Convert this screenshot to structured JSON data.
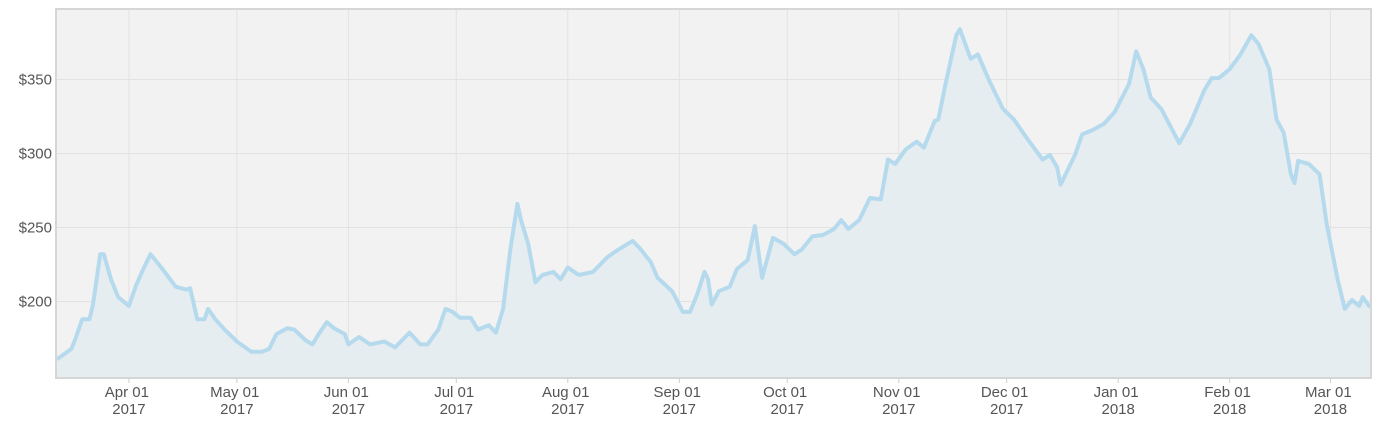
{
  "chart_data": {
    "type": "area",
    "x": [
      "2017-03-12",
      "2017-03-16",
      "2017-03-17",
      "2017-03-19",
      "2017-03-21",
      "2017-03-22",
      "2017-03-24",
      "2017-03-25",
      "2017-03-27",
      "2017-03-29",
      "2017-04-01",
      "2017-04-03",
      "2017-04-05",
      "2017-04-07",
      "2017-04-10",
      "2017-04-14",
      "2017-04-17",
      "2017-04-18",
      "2017-04-20",
      "2017-04-22",
      "2017-04-23",
      "2017-04-25",
      "2017-04-28",
      "2017-05-01",
      "2017-05-05",
      "2017-05-08",
      "2017-05-10",
      "2017-05-12",
      "2017-05-15",
      "2017-05-17",
      "2017-05-20",
      "2017-05-22",
      "2017-05-24",
      "2017-05-26",
      "2017-05-28",
      "2017-05-31",
      "2017-06-01",
      "2017-06-04",
      "2017-06-07",
      "2017-06-11",
      "2017-06-14",
      "2017-06-18",
      "2017-06-21",
      "2017-06-23",
      "2017-06-26",
      "2017-06-28",
      "2017-06-30",
      "2017-07-02",
      "2017-07-05",
      "2017-07-07",
      "2017-07-10",
      "2017-07-12",
      "2017-07-14",
      "2017-07-16",
      "2017-07-18",
      "2017-07-19",
      "2017-07-21",
      "2017-07-23",
      "2017-07-25",
      "2017-07-28",
      "2017-07-30",
      "2017-08-01",
      "2017-08-04",
      "2017-08-08",
      "2017-08-12",
      "2017-08-15",
      "2017-08-19",
      "2017-08-21",
      "2017-08-24",
      "2017-08-26",
      "2017-08-30",
      "2017-09-02",
      "2017-09-04",
      "2017-09-06",
      "2017-09-08",
      "2017-09-09",
      "2017-09-10",
      "2017-09-12",
      "2017-09-15",
      "2017-09-17",
      "2017-09-20",
      "2017-09-22",
      "2017-09-24",
      "2017-09-27",
      "2017-09-30",
      "2017-10-03",
      "2017-10-05",
      "2017-10-08",
      "2017-10-11",
      "2017-10-14",
      "2017-10-16",
      "2017-10-18",
      "2017-10-21",
      "2017-10-24",
      "2017-10-27",
      "2017-10-29",
      "2017-10-31",
      "2017-11-03",
      "2017-11-06",
      "2017-11-08",
      "2017-11-11",
      "2017-11-12",
      "2017-11-14",
      "2017-11-17",
      "2017-11-18",
      "2017-11-21",
      "2017-11-23",
      "2017-11-26",
      "2017-11-30",
      "2017-12-03",
      "2017-12-07",
      "2017-12-11",
      "2017-12-13",
      "2017-12-15",
      "2017-12-16",
      "2017-12-20",
      "2017-12-22",
      "2017-12-25",
      "2017-12-28",
      "2017-12-31",
      "2018-01-04",
      "2018-01-06",
      "2018-01-08",
      "2018-01-10",
      "2018-01-13",
      "2018-01-18",
      "2018-01-21",
      "2018-01-25",
      "2018-01-27",
      "2018-01-29",
      "2018-02-01",
      "2018-02-04",
      "2018-02-07",
      "2018-02-09",
      "2018-02-12",
      "2018-02-14",
      "2018-02-16",
      "2018-02-18",
      "2018-02-19",
      "2018-02-20",
      "2018-02-23",
      "2018-02-26",
      "2018-02-28",
      "2018-03-03",
      "2018-03-05",
      "2018-03-07",
      "2018-03-09",
      "2018-03-10",
      "2018-03-12"
    ],
    "values": [
      161,
      168,
      174,
      188,
      188,
      198,
      232,
      232,
      215,
      203,
      197,
      211,
      222,
      232,
      223,
      210,
      208,
      209,
      188,
      188,
      195,
      188,
      180,
      173,
      166,
      166,
      168,
      178,
      182,
      181,
      174,
      171,
      179,
      186,
      182,
      178,
      171,
      176,
      171,
      173,
      169,
      179,
      171,
      171,
      181,
      195,
      193,
      189,
      189,
      181,
      184,
      179,
      195,
      235,
      266,
      255,
      239,
      213,
      218,
      220,
      215,
      223,
      218,
      220,
      230,
      235,
      241,
      236,
      227,
      216,
      207,
      193,
      193,
      205,
      220,
      215,
      198,
      207,
      210,
      222,
      228,
      251,
      216,
      243,
      239,
      232,
      235,
      244,
      245,
      249,
      255,
      249,
      255,
      270,
      269,
      296,
      293,
      303,
      308,
      304,
      322,
      323,
      347,
      380,
      384,
      364,
      367,
      350,
      330,
      323,
      309,
      296,
      299,
      291,
      279,
      299,
      313,
      316,
      320,
      328,
      347,
      369,
      357,
      338,
      330,
      307,
      320,
      343,
      351,
      351,
      357,
      367,
      380,
      374,
      357,
      323,
      314,
      286,
      280,
      295,
      293,
      286,
      252,
      215,
      195,
      201,
      197,
      203,
      196
    ],
    "color": "#b6daed",
    "fill": "#e5edf1",
    "xlim": [
      "2017-03-12",
      "2018-03-12"
    ],
    "xticks": [
      {
        "value": "2017-04-01",
        "label": "Apr 01 2017"
      },
      {
        "value": "2017-05-01",
        "label": "May 01 2017"
      },
      {
        "value": "2017-06-01",
        "label": "Jun 01 2017"
      },
      {
        "value": "2017-07-01",
        "label": "Jul 01 2017"
      },
      {
        "value": "2017-08-01",
        "label": "Aug 01 2017"
      },
      {
        "value": "2017-09-01",
        "label": "Sep 01 2017"
      },
      {
        "value": "2017-10-01",
        "label": "Oct 01 2017"
      },
      {
        "value": "2017-11-01",
        "label": "Nov 01 2017"
      },
      {
        "value": "2017-12-01",
        "label": "Dec 01 2017"
      },
      {
        "value": "2018-01-01",
        "label": "Jan 01 2018"
      },
      {
        "value": "2018-02-01",
        "label": "Feb 01 2018"
      },
      {
        "value": "2018-03-01",
        "label": "Mar 01 2018"
      }
    ],
    "ylim": [
      149,
      397
    ],
    "yticks": [
      {
        "value": 200,
        "label": "$200"
      },
      {
        "value": 250,
        "label": "$250"
      },
      {
        "value": 300,
        "label": "$300"
      },
      {
        "value": 350,
        "label": "$350"
      }
    ],
    "grid": true
  }
}
